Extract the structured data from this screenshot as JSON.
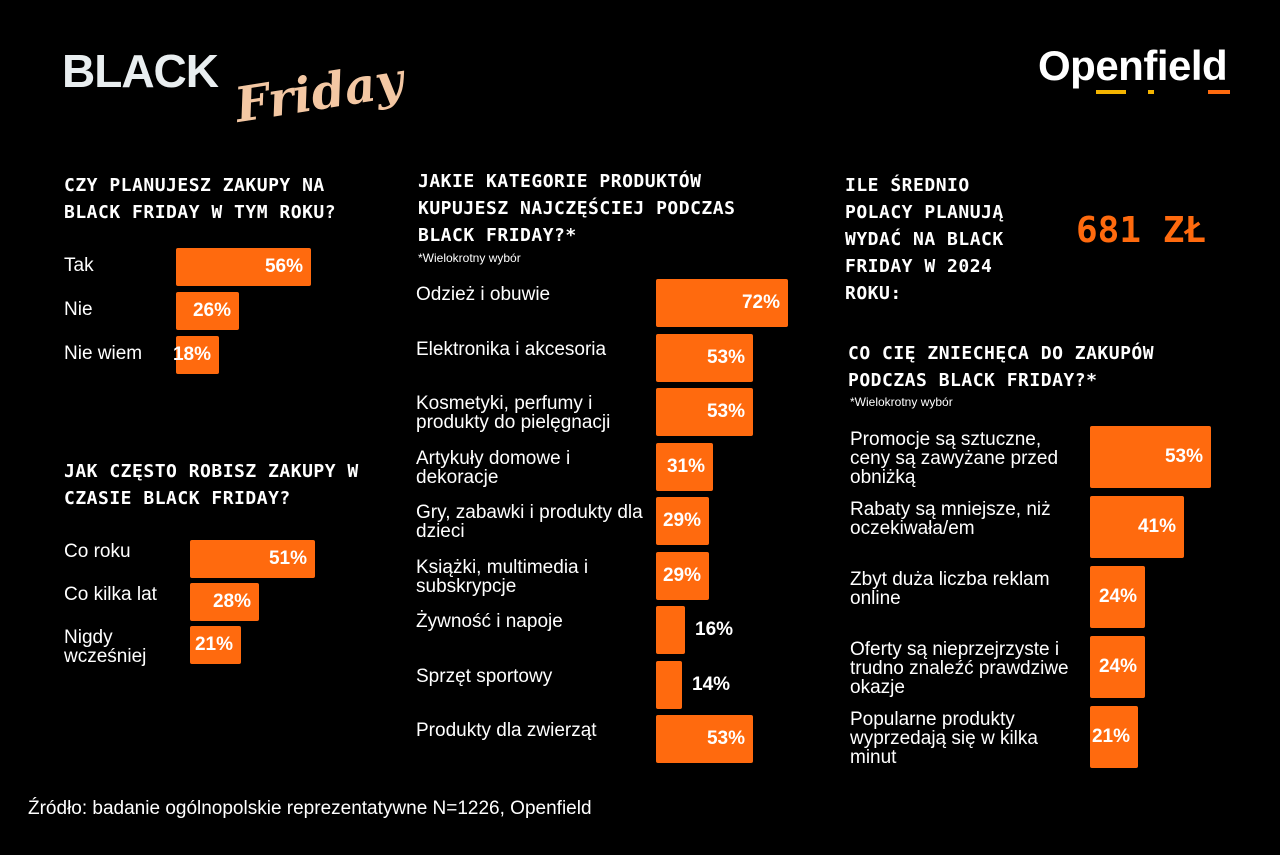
{
  "header": {
    "black": "BLACK",
    "friday": "Friday",
    "brand": "Openfield"
  },
  "colors": {
    "accent": "#ff6a0e",
    "background": "#000000",
    "script": "#f3c7a3"
  },
  "chart_data": [
    {
      "type": "bar",
      "title": "CZY PLANUJESZ ZAKUPY NA BLACK FRIDAY W TYM ROKU?",
      "categories": [
        "Tak",
        "Nie",
        "Nie wiem"
      ],
      "values": [
        56,
        26,
        18
      ],
      "value_labels": [
        "56%",
        "26%",
        "18%"
      ]
    },
    {
      "type": "bar",
      "title": "JAK CZĘSTO ROBISZ ZAKUPY W CZASIE BLACK FRIDAY?",
      "categories": [
        "Co roku",
        "Co kilka lat",
        "Nigdy wcześniej"
      ],
      "values": [
        51,
        28,
        21
      ],
      "value_labels": [
        "51%",
        "28%",
        "21%"
      ]
    },
    {
      "type": "bar",
      "title": "JAKIE KATEGORIE PRODUKTÓW KUPUJESZ NAJCZĘŚCIEJ PODCZAS BLACK FRIDAY?*",
      "note": "*Wielokrotny wybór",
      "categories": [
        "Odzież i obuwie",
        "Elektronika i akcesoria",
        "Kosmetyki, perfumy i produkty do pielęgnacji",
        "Artykuły domowe i dekoracje",
        "Gry, zabawki i produkty dla dzieci",
        "Książki, multimedia i subskrypcje",
        "Żywność i napoje",
        "Sprzęt sportowy",
        "Produkty dla zwierząt"
      ],
      "values": [
        72,
        53,
        53,
        31,
        29,
        29,
        16,
        14,
        53
      ],
      "value_labels": [
        "72%",
        "53%",
        "53%",
        "31%",
        "29%",
        "29%",
        "16%",
        "14%",
        "53%"
      ]
    },
    {
      "type": "table",
      "title": "ILE ŚREDNIO POLACY PLANUJĄ WYDAĆ NA BLACK FRIDAY W 2024 ROKU:",
      "value": "681 ZŁ"
    },
    {
      "type": "bar",
      "title": "CO CIĘ ZNIECHĘCA DO ZAKUPÓW PODCZAS BLACK FRIDAY?*",
      "note": "*Wielokrotny wybór",
      "categories": [
        "Promocje są sztuczne, ceny są zawyżane przed obniżką",
        "Rabaty są mniejsze, niż oczekiwała/em",
        "Zbyt duża liczba reklam online",
        "Oferty są nieprzejrzyste i trudno znaleźć prawdziwe okazje",
        "Popularne produkty wyprzedają się w kilka minut"
      ],
      "values": [
        53,
        41,
        24,
        24,
        21
      ],
      "value_labels": [
        "53%",
        "41%",
        "24%",
        "24%",
        "21%"
      ]
    }
  ],
  "source": "Źródło: badanie ogólnopolskie reprezentatywne N=1226, Openfield"
}
